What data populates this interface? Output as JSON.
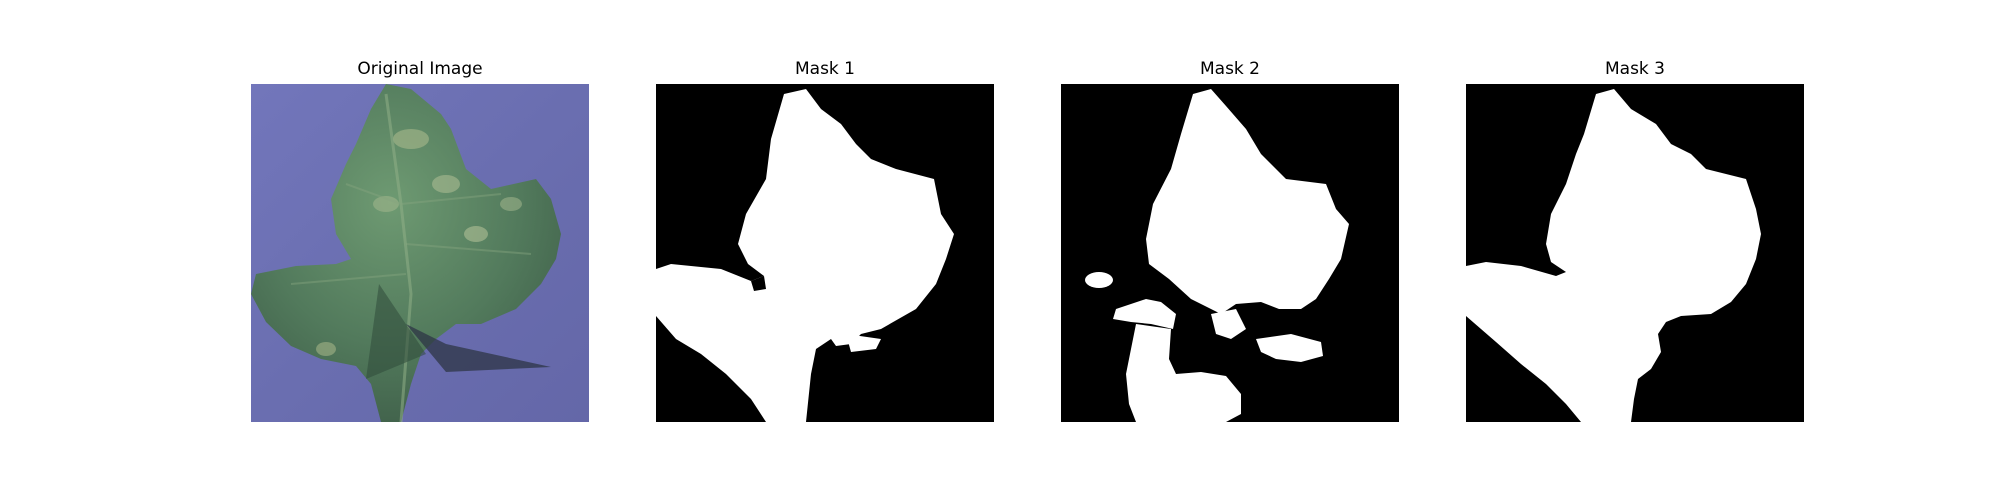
{
  "figure": {
    "panels": [
      {
        "title": "Original Image"
      },
      {
        "title": "Mask 1"
      },
      {
        "title": "Mask 2"
      },
      {
        "title": "Mask 3"
      }
    ]
  },
  "colors": {
    "background": "#6f72b3",
    "leaf": "#557a5e",
    "mask_fg": "#ffffff",
    "mask_bg": "#000000"
  }
}
